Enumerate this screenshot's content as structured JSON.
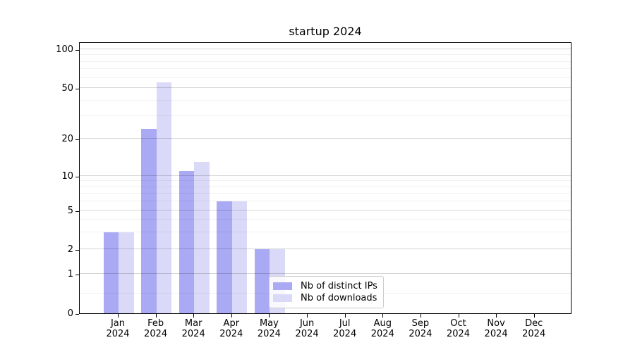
{
  "title": "startup 2024",
  "colors": {
    "distinct_ips": "#a9a9f4",
    "downloads": "#dadaf8",
    "major_grid": "rgba(0,0,0,0.16)",
    "minor_grid": "rgba(0,0,0,0.055)",
    "axis": "#000000",
    "background": "#ffffff",
    "legend_border": "#cccccc"
  },
  "chart_data": {
    "type": "bar",
    "title": "startup 2024",
    "categories": [
      "Jan 2024",
      "Feb 2024",
      "Mar 2024",
      "Apr 2024",
      "May 2024",
      "Jun 2024",
      "Jul 2024",
      "Aug 2024",
      "Sep 2024",
      "Oct 2024",
      "Nov 2024",
      "Dec 2024"
    ],
    "series": [
      {
        "name": "Nb of distinct IPs",
        "color": "#a9a9f4",
        "values": [
          3,
          24,
          11,
          6,
          2,
          0,
          0,
          0,
          0,
          0,
          0,
          0
        ]
      },
      {
        "name": "Nb of downloads",
        "color": "#dadaf8",
        "values": [
          3,
          55,
          13,
          6,
          2,
          0,
          0,
          0,
          0,
          0,
          0,
          0
        ]
      }
    ],
    "xlabel": "",
    "ylabel": "",
    "yscale": "symlog",
    "ylim": [
      0,
      105
    ],
    "yticks": [
      0,
      1,
      2,
      5,
      10,
      20,
      50,
      100
    ],
    "minor_gridlines": [
      0.5,
      3,
      4,
      6,
      7,
      8,
      9,
      30,
      40,
      60,
      70,
      80,
      90
    ],
    "y_calibration": [
      [
        0,
        0
      ],
      [
        1,
        0.1451
      ],
      [
        2,
        0.2358
      ],
      [
        5,
        0.3782
      ],
      [
        10,
        0.5052
      ],
      [
        20,
        0.6432
      ],
      [
        50,
        0.829
      ],
      [
        100,
        0.9715
      ]
    ],
    "grid": "horizontal major+minor, drawn above bars",
    "legend_position": "lower center"
  }
}
